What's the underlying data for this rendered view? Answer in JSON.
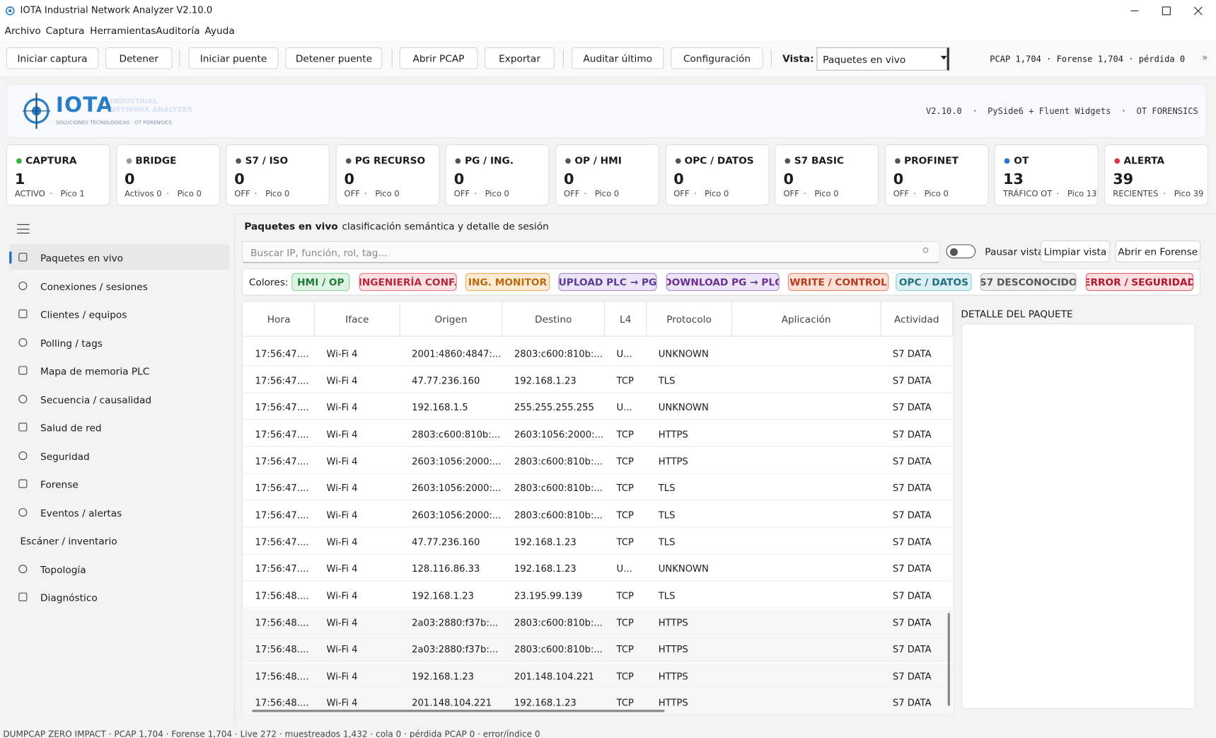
{
  "window": {
    "title": "IOTA Industrial Network Analyzer V2.10.0"
  },
  "menu": [
    "Archivo",
    "Captura",
    "Herramientas",
    "Auditoría",
    "Ayuda"
  ],
  "toolbar": {
    "buttons": [
      "Iniciar captura",
      "Detener",
      "Iniciar puente",
      "Detener puente",
      "Abrir PCAP",
      "Exportar",
      "Auditar último",
      "Configuración"
    ],
    "view_label": "Vista:",
    "view_value": "Paquetes en vivo",
    "status": "PCAP 1,704 · Forense 1,704 · pérdida 0"
  },
  "header": {
    "brand": "IOTA",
    "brand_line1": "INDUSTRIAL",
    "brand_line2": "NETWORK ANALYZER",
    "brand_tagline": "SOLUCIONES TECNOLÓGICAS · OT FORENSICS",
    "info": "V2.10.0  ·  PySide6 + Fluent Widgets  ·  OT FORENSICS"
  },
  "cards": [
    {
      "title": "CAPTURA",
      "value": "1",
      "sub1": "ACTIVO",
      "sub2": "Pico 1",
      "dot": "#2fb34a"
    },
    {
      "title": "BRIDGE",
      "value": "0",
      "sub1": "Activos 0",
      "sub2": "Pico 0",
      "dot": "#9a9a9a"
    },
    {
      "title": "S7 / ISO",
      "value": "0",
      "sub1": "OFF",
      "sub2": "Pico 0",
      "dot": "#555555"
    },
    {
      "title": "PG RECURSO",
      "value": "0",
      "sub1": "OFF",
      "sub2": "Pico 0",
      "dot": "#555555"
    },
    {
      "title": "PG / ING.",
      "value": "0",
      "sub1": "OFF",
      "sub2": "Pico 0",
      "dot": "#555555"
    },
    {
      "title": "OP / HMI",
      "value": "0",
      "sub1": "OFF",
      "sub2": "Pico 0",
      "dot": "#555555"
    },
    {
      "title": "OPC / DATOS",
      "value": "0",
      "sub1": "OFF",
      "sub2": "Pico 0",
      "dot": "#555555"
    },
    {
      "title": "S7 BASIC",
      "value": "0",
      "sub1": "OFF",
      "sub2": "Pico 0",
      "dot": "#555555"
    },
    {
      "title": "PROFINET",
      "value": "0",
      "sub1": "OFF",
      "sub2": "Pico 0",
      "dot": "#555555"
    },
    {
      "title": "OT",
      "value": "13",
      "sub1": "TRÁFICO OT",
      "sub2": "Pico 13",
      "dot": "#2b6fd1"
    },
    {
      "title": "ALERTA",
      "value": "39",
      "sub1": "RECIENTES",
      "sub2": "Pico 39",
      "dot": "#e0323c"
    }
  ],
  "sidebar": [
    "Paquetes en vivo",
    "Conexiones / sesiones",
    "Clientes / equipos",
    "Polling / tags",
    "Mapa de memoria PLC",
    "Secuencia / causalidad",
    "Salud de red",
    "Seguridad",
    "Forense",
    "Eventos / alertas",
    "Escáner / inventario",
    "Topología",
    "Diagnóstico"
  ],
  "panel": {
    "title": "Paquetes en vivo",
    "subtitle": "clasificación semántica y detalle de sesión",
    "search_placeholder": "Buscar IP, función, rol, tag...",
    "pause_label": "Pausar vista",
    "clear_button": "Limpiar vista",
    "forensic_button": "Abrir en Forense",
    "colors_label": "Colores:",
    "chips": [
      {
        "label": "HMI / OP",
        "bg": "#dff3e4",
        "border": "#8fd19e",
        "color": "#1e7a36"
      },
      {
        "label": "INGENIERÍA CONF.",
        "bg": "#fde2e4",
        "border": "#e07a86",
        "color": "#b3263a"
      },
      {
        "label": "ING. MONITOR",
        "bg": "#fdebd3",
        "border": "#e8a860",
        "color": "#b86a10"
      },
      {
        "label": "UPLOAD PLC → PG",
        "bg": "#ece4f7",
        "border": "#a98ad6",
        "color": "#5b3a97"
      },
      {
        "label": "DOWNLOAD PG → PLC",
        "bg": "#ece4f7",
        "border": "#a98ad6",
        "color": "#6b2f8f"
      },
      {
        "label": "WRITE / CONTROL",
        "bg": "#fde0d8",
        "border": "#e08a70",
        "color": "#b33a1a"
      },
      {
        "label": "OPC / DATOS",
        "bg": "#dcf0f3",
        "border": "#8fcfd8",
        "color": "#1e6f7d"
      },
      {
        "label": "S7 DESCONOCIDO",
        "bg": "#eeeeee",
        "border": "#bbbbbb",
        "color": "#555555"
      },
      {
        "label": "ERROR / SEGURIDAD",
        "bg": "#fde0e2",
        "border": "#e06070",
        "color": "#b0142a"
      }
    ],
    "detail_title": "DETALLE DEL PAQUETE"
  },
  "table": {
    "columns": [
      "Hora",
      "Iface",
      "Origen",
      "Destino",
      "L4",
      "Protocolo",
      "Aplicación",
      "Actividad"
    ],
    "rows": [
      [
        "17:56:47....",
        "Wi-Fi 4",
        "2001:4860:4847:...",
        "2803:c600:810b:...",
        "U...",
        "UNKNOWN",
        "",
        "S7 DATA"
      ],
      [
        "17:56:47....",
        "Wi-Fi 4",
        "47.77.236.160",
        "192.168.1.23",
        "TCP",
        "TLS",
        "",
        "S7 DATA"
      ],
      [
        "17:56:47....",
        "Wi-Fi 4",
        "192.168.1.5",
        "255.255.255.255",
        "U...",
        "UNKNOWN",
        "",
        "S7 DATA"
      ],
      [
        "17:56:47....",
        "Wi-Fi 4",
        "2803:c600:810b:...",
        "2603:1056:2000:...",
        "TCP",
        "HTTPS",
        "",
        "S7 DATA"
      ],
      [
        "17:56:47....",
        "Wi-Fi 4",
        "2603:1056:2000:...",
        "2803:c600:810b:...",
        "TCP",
        "HTTPS",
        "",
        "S7 DATA"
      ],
      [
        "17:56:47....",
        "Wi-Fi 4",
        "2603:1056:2000:...",
        "2803:c600:810b:...",
        "TCP",
        "TLS",
        "",
        "S7 DATA"
      ],
      [
        "17:56:47....",
        "Wi-Fi 4",
        "2603:1056:2000:...",
        "2803:c600:810b:...",
        "TCP",
        "TLS",
        "",
        "S7 DATA"
      ],
      [
        "17:56:47....",
        "Wi-Fi 4",
        "47.77.236.160",
        "192.168.1.23",
        "TCP",
        "TLS",
        "",
        "S7 DATA"
      ],
      [
        "17:56:47....",
        "Wi-Fi 4",
        "128.116.86.33",
        "192.168.1.23",
        "U...",
        "UNKNOWN",
        "",
        "S7 DATA"
      ],
      [
        "17:56:48....",
        "Wi-Fi 4",
        "192.168.1.23",
        "23.195.99.139",
        "TCP",
        "TLS",
        "",
        "S7 DATA"
      ],
      [
        "17:56:48....",
        "Wi-Fi 4",
        "2a03:2880:f37b:...",
        "2803:c600:810b:...",
        "TCP",
        "HTTPS",
        "",
        "S7 DATA"
      ],
      [
        "17:56:48....",
        "Wi-Fi 4",
        "2a03:2880:f37b:...",
        "2803:c600:810b:...",
        "TCP",
        "HTTPS",
        "",
        "S7 DATA"
      ],
      [
        "17:56:48....",
        "Wi-Fi 4",
        "192.168.1.23",
        "201.148.104.221",
        "TCP",
        "HTTPS",
        "",
        "S7 DATA"
      ],
      [
        "17:56:48....",
        "Wi-Fi 4",
        "201.148.104.221",
        "192.168.1.23",
        "TCP",
        "HTTPS",
        "",
        "S7 DATA"
      ]
    ]
  },
  "statusbar": "DUMPCAP ZERO IMPACT · PCAP 1,704 · Forense 1,704 · Live 272 · muestreados 1,432 · cola 0 · pérdida PCAP 0 · error/índice 0"
}
